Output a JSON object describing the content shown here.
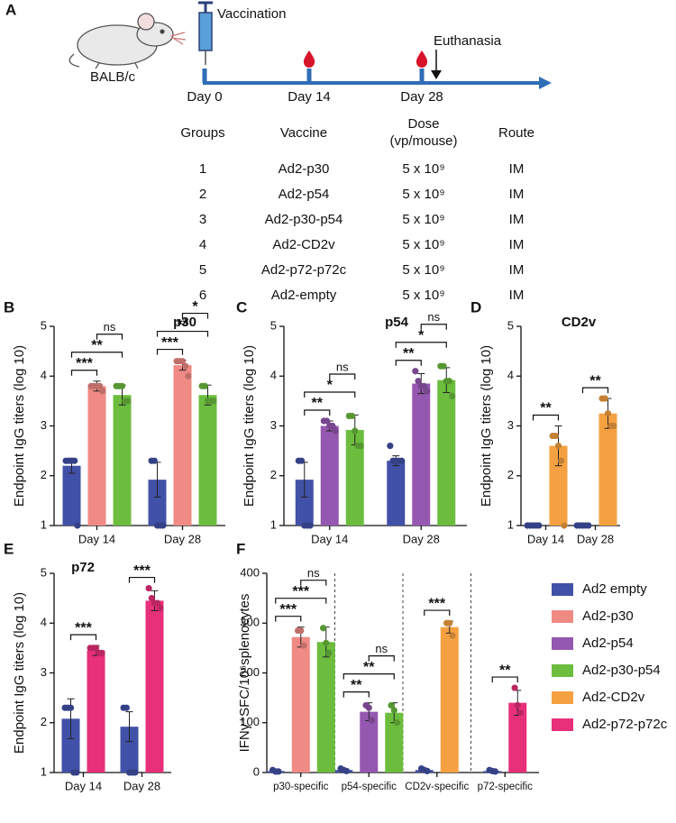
{
  "panel_a": {
    "label": "A",
    "mouse_label": "BALB/c",
    "vaccination": "Vaccination",
    "euthanasia": "Euthanasia",
    "timeline": [
      "Day 0",
      "Day 14",
      "Day 28"
    ],
    "table": {
      "header": [
        "Groups",
        "Vaccine",
        "Dose",
        "Route"
      ],
      "dose_unit": "(vp/mouse)",
      "rows": [
        [
          "1",
          "Ad2-p30",
          "5 x 10⁹",
          "IM"
        ],
        [
          "2",
          "Ad2-p54",
          "5 x 10⁹",
          "IM"
        ],
        [
          "3",
          "Ad2-p30-p54",
          "5 x 10⁹",
          "IM"
        ],
        [
          "4",
          "Ad2-CD2v",
          "5 x 10⁹",
          "IM"
        ],
        [
          "5",
          "Ad2-p72-p72c",
          "5 x 10⁹",
          "IM"
        ],
        [
          "6",
          "Ad2-empty",
          "5 x 10⁹",
          "IM"
        ]
      ]
    }
  },
  "chart_data": [
    {
      "type": "bar",
      "panel": "B",
      "title": "p30",
      "y_label": "Endpoint IgG titers (log 10)",
      "categories": [
        "Day 14",
        "Day 28"
      ],
      "ylim": [
        1,
        5
      ],
      "yticks": [
        1,
        2,
        3,
        4,
        5
      ],
      "series": [
        {
          "color": "#4151a8",
          "values": [
            2.2,
            1.92
          ],
          "errors": [
            0.15,
            0.35
          ],
          "points": [
            [
              2.3,
              2.3,
              2.3,
              2.3,
              1.0
            ],
            [
              2.3,
              2.3,
              1.0,
              1.0,
              1.0
            ]
          ]
        },
        {
          "color": "#f08a84",
          "values": [
            3.8,
            4.22
          ],
          "errors": [
            0.1,
            0.1
          ],
          "points": [
            [
              3.8,
              3.8,
              3.8,
              3.8,
              3.7
            ],
            [
              4.3,
              4.3,
              4.3,
              4.2,
              4.0
            ]
          ]
        },
        {
          "color": "#6cbd3e",
          "values": [
            3.62,
            3.62
          ],
          "errors": [
            0.2,
            0.2
          ],
          "points": [
            [
              3.8,
              3.8,
              3.8,
              3.5,
              3.5
            ],
            [
              3.8,
              3.8,
              3.5,
              3.5,
              3.5
            ]
          ]
        }
      ],
      "brackets": [
        {
          "category": 0,
          "from": 0,
          "to": 1,
          "label": "***"
        },
        {
          "category": 0,
          "from": 0,
          "to": 2,
          "label": "**"
        },
        {
          "category": 0,
          "from": 1,
          "to": 2,
          "label": "ns"
        },
        {
          "category": 1,
          "from": 0,
          "to": 1,
          "label": "***"
        },
        {
          "category": 1,
          "from": 0,
          "to": 2,
          "label": "**"
        },
        {
          "category": 1,
          "from": 1,
          "to": 2,
          "label": "*"
        }
      ]
    },
    {
      "type": "bar",
      "panel": "C",
      "title": "p54",
      "y_label": "Endpoint IgG titers (log 10)",
      "categories": [
        "Day 14",
        "Day 28"
      ],
      "ylim": [
        1,
        5
      ],
      "yticks": [
        1,
        2,
        3,
        4,
        5
      ],
      "series": [
        {
          "color": "#4151a8",
          "values": [
            1.92,
            2.3
          ],
          "errors": [
            0.35,
            0.1
          ],
          "points": [
            [
              2.3,
              2.3,
              1.0,
              1.0,
              1.0
            ],
            [
              2.6,
              2.3,
              2.3,
              2.3,
              2.3
            ]
          ]
        },
        {
          "color": "#9558b0",
          "values": [
            3.0,
            3.85
          ],
          "errors": [
            0.1,
            0.2
          ],
          "points": [
            [
              3.1,
              3.1,
              3.0,
              3.0,
              2.9
            ],
            [
              4.1,
              3.9,
              3.8,
              3.8,
              3.7
            ]
          ]
        },
        {
          "color": "#6cbd3e",
          "values": [
            2.92,
            3.92
          ],
          "errors": [
            0.3,
            0.25
          ],
          "points": [
            [
              3.2,
              3.2,
              2.9,
              2.6,
              2.6
            ],
            [
              4.2,
              4.2,
              3.9,
              3.9,
              3.6
            ]
          ]
        }
      ],
      "brackets": [
        {
          "category": 0,
          "from": 0,
          "to": 1,
          "label": "**"
        },
        {
          "category": 0,
          "from": 0,
          "to": 2,
          "label": "*"
        },
        {
          "category": 0,
          "from": 1,
          "to": 2,
          "label": "ns"
        },
        {
          "category": 1,
          "from": 0,
          "to": 1,
          "label": "**"
        },
        {
          "category": 1,
          "from": 0,
          "to": 2,
          "label": "*"
        },
        {
          "category": 1,
          "from": 1,
          "to": 2,
          "label": "ns"
        }
      ]
    },
    {
      "type": "bar",
      "panel": "D",
      "title": "CD2v",
      "y_label": "Endpoint IgG titers (log 10)",
      "categories": [
        "Day 14",
        "Day 28"
      ],
      "ylim": [
        1,
        5
      ],
      "yticks": [
        1,
        2,
        3,
        4,
        5
      ],
      "series": [
        {
          "color": "#4151a8",
          "values": [
            1.0,
            1.0
          ],
          "errors": [
            0,
            0
          ],
          "points": [
            [
              1.0,
              1.0,
              1.0,
              1.0,
              1.0
            ],
            [
              1.0,
              1.0,
              1.0,
              1.0,
              1.0
            ]
          ]
        },
        {
          "color": "#f5a142",
          "values": [
            2.6,
            3.25
          ],
          "errors": [
            0.4,
            0.3
          ],
          "points": [
            [
              2.8,
              2.8,
              2.6,
              2.3,
              1.0
            ],
            [
              3.55,
              3.55,
              3.25,
              3.0,
              3.0
            ]
          ]
        }
      ],
      "brackets": [
        {
          "category": 0,
          "from": 0,
          "to": 1,
          "label": "**"
        },
        {
          "category": 1,
          "from": 0,
          "to": 1,
          "label": "**"
        }
      ]
    },
    {
      "type": "bar",
      "panel": "E",
      "title": "p72",
      "y_label": "Endpoint IgG titers (log 10)",
      "categories": [
        "Day 14",
        "Day 28"
      ],
      "ylim": [
        1,
        5
      ],
      "yticks": [
        1,
        2,
        3,
        4,
        5
      ],
      "series": [
        {
          "color": "#4151a8",
          "values": [
            2.08,
            1.92
          ],
          "errors": [
            0.4,
            0.3
          ],
          "points": [
            [
              2.3,
              2.3,
              2.3,
              1.0,
              1.0
            ],
            [
              2.3,
              2.3,
              1.0,
              1.0,
              1.0
            ]
          ]
        },
        {
          "color": "#e8307a",
          "values": [
            3.45,
            4.45
          ],
          "errors": [
            0.1,
            0.2
          ],
          "points": [
            [
              3.5,
              3.5,
              3.5,
              3.4,
              3.4
            ],
            [
              4.7,
              4.5,
              4.4,
              4.4,
              4.3
            ]
          ]
        }
      ],
      "brackets": [
        {
          "category": 0,
          "from": 0,
          "to": 1,
          "label": "***"
        },
        {
          "category": 1,
          "from": 0,
          "to": 1,
          "label": "***"
        }
      ]
    },
    {
      "type": "bar",
      "panel": "F",
      "y_label": "IFNγ⁺SFC/10⁶splenocytes",
      "dividers": true,
      "legend": "right",
      "categories": [
        "p30-specific",
        "p54-specific",
        "CD2v-specific",
        "p72-specific"
      ],
      "ylim": [
        0,
        400
      ],
      "yticks": [
        0,
        100,
        200,
        300,
        400
      ],
      "series": [
        {
          "name": "Ad2 empty",
          "color": "#4151a8",
          "values": [
            3,
            5,
            5,
            3
          ],
          "errors": [
            2,
            3,
            3,
            2
          ],
          "points": [
            [
              5,
              2,
              2
            ],
            [
              8,
              5,
              3
            ],
            [
              8,
              5,
              3
            ],
            [
              5,
              3,
              2
            ]
          ]
        },
        {
          "name": "Ad2-p30",
          "color": "#f08a84",
          "values": [
            272,
            null,
            null,
            null
          ],
          "errors": [
            20,
            null,
            null,
            null
          ],
          "points": [
            [
              285,
              285,
              255
            ],
            null,
            null,
            null
          ]
        },
        {
          "name": "Ad2-p54",
          "color": "#9558b0",
          "values": [
            null,
            122,
            null,
            null
          ],
          "errors": [
            null,
            18,
            null,
            null
          ],
          "points": [
            null,
            [
              135,
              130,
              105
            ],
            null,
            null
          ]
        },
        {
          "name": "Ad2-p30-p54",
          "color": "#6cbd3e",
          "values": [
            262,
            120,
            null,
            null
          ],
          "errors": [
            30,
            20,
            null,
            null
          ],
          "points": [
            [
              290,
              260,
              240
            ],
            [
              135,
              125,
              100
            ],
            null,
            null
          ]
        },
        {
          "name": "Ad2-CD2v",
          "color": "#f5a142",
          "values": [
            null,
            null,
            292,
            null
          ],
          "errors": [
            null,
            null,
            12,
            null
          ],
          "points": [
            null,
            null,
            [
              300,
              300,
              275
            ],
            null
          ]
        },
        {
          "name": "Ad2-p72-p72c",
          "color": "#e8307a",
          "values": [
            null,
            null,
            null,
            140
          ],
          "errors": [
            null,
            null,
            null,
            25
          ],
          "points": [
            null,
            null,
            null,
            [
              170,
              135,
              120
            ]
          ]
        }
      ],
      "brackets": [
        {
          "category": 0,
          "from": 0,
          "to": 1,
          "label": "***"
        },
        {
          "category": 0,
          "from": 0,
          "to": 3,
          "label": "***"
        },
        {
          "category": 0,
          "from": 1,
          "to": 3,
          "label": "ns"
        },
        {
          "category": 1,
          "from": 0,
          "to": 2,
          "label": "**"
        },
        {
          "category": 1,
          "from": 0,
          "to": 3,
          "label": "**"
        },
        {
          "category": 1,
          "from": 2,
          "to": 3,
          "label": "ns"
        },
        {
          "category": 2,
          "from": 0,
          "to": 4,
          "label": "***"
        },
        {
          "category": 3,
          "from": 0,
          "to": 5,
          "label": "**"
        }
      ]
    }
  ]
}
